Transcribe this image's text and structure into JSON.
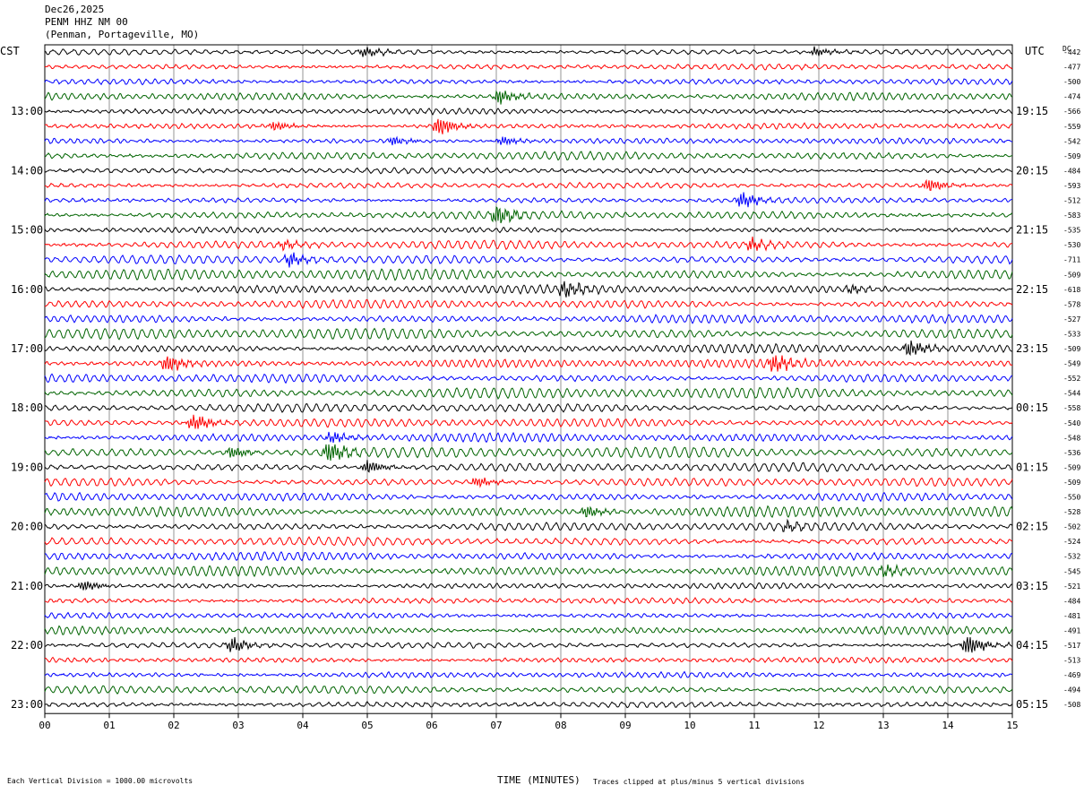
{
  "header": {
    "date": "Dec26,2025",
    "station": "PENM HHZ NM 00",
    "location": "(Penman, Portageville, MO)"
  },
  "left_axis_title": "CST",
  "right_axis_title": "UTC",
  "dc_title": "DC",
  "footer": {
    "xlabel": "TIME (MINUTES)",
    "scale_note": "Each Vertical Division = 1000.00 microvolts",
    "clip_note": "Traces clipped at plus/minus 5 vertical divisions"
  },
  "chart_data": {
    "type": "line",
    "title": "PENM HHZ NM 00",
    "xlabel": "TIME (MINUTES)",
    "ylabel": "",
    "xlim": [
      0,
      15
    ],
    "x_ticks": [
      "00",
      "01",
      "02",
      "03",
      "04",
      "05",
      "06",
      "07",
      "08",
      "09",
      "10",
      "11",
      "12",
      "13",
      "14",
      "15"
    ],
    "trace_colors": [
      "#000000",
      "#ff0000",
      "#0000ff",
      "#006400"
    ],
    "cst_labels": [
      "13:00",
      "14:00",
      "15:00",
      "16:00",
      "17:00",
      "18:00",
      "19:00",
      "20:00",
      "21:00",
      "22:00",
      "23:00"
    ],
    "utc_labels": [
      "19:15",
      "20:15",
      "21:15",
      "22:15",
      "23:15",
      "00:15",
      "01:15",
      "02:15",
      "03:15",
      "04:15",
      "05:15"
    ],
    "label_rows": [
      4,
      8,
      12,
      16,
      20,
      24,
      28,
      32,
      36,
      40,
      44
    ],
    "dc_offsets": [
      -442,
      -477,
      -500,
      -474,
      -566,
      -559,
      -542,
      -509,
      -484,
      -593,
      -512,
      -583,
      -535,
      -530,
      -711,
      -509,
      -618,
      -578,
      -527,
      -533,
      -509,
      -549,
      -552,
      -544,
      -558,
      -540,
      -548,
      -536,
      -509,
      -509,
      -550,
      -528,
      -502,
      -524,
      -532,
      -545,
      -521,
      -484,
      -481,
      -491,
      -517,
      -513,
      -469,
      -494,
      -508
    ],
    "events": [
      {
        "trace": 0,
        "minute": 4.95,
        "amp": 1.6
      },
      {
        "trace": 0,
        "minute": 11.95,
        "amp": 1.4
      },
      {
        "trace": 3,
        "minute": 7.05,
        "amp": 2.2
      },
      {
        "trace": 5,
        "minute": 3.55,
        "amp": 1.5
      },
      {
        "trace": 5,
        "minute": 6.1,
        "amp": 3.0
      },
      {
        "trace": 6,
        "minute": 5.4,
        "amp": 1.4
      },
      {
        "trace": 6,
        "minute": 7.1,
        "amp": 1.4
      },
      {
        "trace": 9,
        "minute": 13.7,
        "amp": 2.0
      },
      {
        "trace": 10,
        "minute": 10.8,
        "amp": 2.4
      },
      {
        "trace": 11,
        "minute": 7.0,
        "amp": 3.2
      },
      {
        "trace": 13,
        "minute": 3.7,
        "amp": 1.3
      },
      {
        "trace": 13,
        "minute": 10.95,
        "amp": 2.0
      },
      {
        "trace": 14,
        "minute": 3.8,
        "amp": 2.0
      },
      {
        "trace": 16,
        "minute": 8.05,
        "amp": 2.6
      },
      {
        "trace": 16,
        "minute": 12.5,
        "amp": 1.2
      },
      {
        "trace": 20,
        "minute": 13.4,
        "amp": 2.8
      },
      {
        "trace": 21,
        "minute": 1.9,
        "amp": 2.8
      },
      {
        "trace": 21,
        "minute": 11.3,
        "amp": 3.0
      },
      {
        "trace": 25,
        "minute": 2.3,
        "amp": 2.8
      },
      {
        "trace": 26,
        "minute": 4.45,
        "amp": 1.8
      },
      {
        "trace": 27,
        "minute": 2.9,
        "amp": 2.0
      },
      {
        "trace": 27,
        "minute": 4.4,
        "amp": 3.4
      },
      {
        "trace": 28,
        "minute": 5.0,
        "amp": 2.2
      },
      {
        "trace": 29,
        "minute": 6.7,
        "amp": 1.6
      },
      {
        "trace": 31,
        "minute": 8.4,
        "amp": 1.8
      },
      {
        "trace": 32,
        "minute": 11.5,
        "amp": 1.4
      },
      {
        "trace": 35,
        "minute": 13.0,
        "amp": 1.6
      },
      {
        "trace": 36,
        "minute": 0.6,
        "amp": 1.6
      },
      {
        "trace": 40,
        "minute": 2.9,
        "amp": 2.4
      },
      {
        "trace": 40,
        "minute": 14.3,
        "amp": 3.2
      }
    ]
  }
}
